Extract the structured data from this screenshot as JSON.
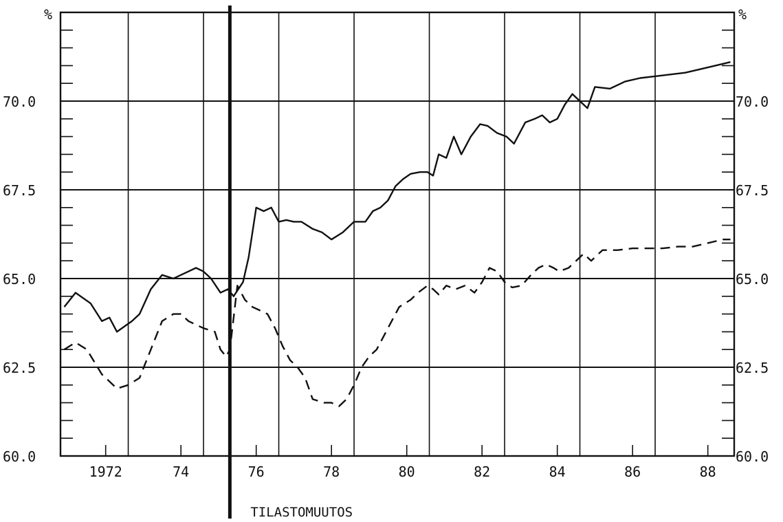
{
  "chart_data": {
    "type": "line",
    "unit_left": "%",
    "unit_right": "%",
    "ylim": [
      60.0,
      72.5
    ],
    "y_major_ticks": [
      60.0,
      62.5,
      65.0,
      67.5,
      70.0
    ],
    "y_tick_labels": [
      "60.0",
      "62.5",
      "65.0",
      "67.5",
      "70.0"
    ],
    "y_minor_step": 0.5,
    "xlim": [
      1970.8,
      1988.7
    ],
    "x_ticks": [
      1972,
      1974,
      1976,
      1978,
      1980,
      1982,
      1984,
      1986,
      1988
    ],
    "x_tick_labels": [
      "1972",
      "74",
      "76",
      "78",
      "80",
      "82",
      "84",
      "86",
      "88"
    ],
    "vertical_gridlines": [
      1970.8,
      1972.6,
      1974.6,
      1975.3,
      1976.6,
      1978.6,
      1980.6,
      1982.6,
      1984.6,
      1986.6,
      1988.7
    ],
    "grid": true,
    "legend": "none",
    "break_line": {
      "x": 1975.3,
      "label": "TILASTOMUUTOS"
    },
    "series": [
      {
        "style": "solid",
        "x": [
          1970.9,
          1971.2,
          1971.6,
          1971.9,
          1972.1,
          1972.3,
          1972.7,
          1972.9,
          1973.2,
          1973.5,
          1973.8,
          1974.0,
          1974.2,
          1974.4,
          1974.6,
          1974.8,
          1975.05,
          1975.25,
          1975.4,
          1975.65,
          1975.8,
          1976.0,
          1976.2,
          1976.4,
          1976.6,
          1976.8,
          1977.0,
          1977.2,
          1977.5,
          1977.75,
          1978.0,
          1978.3,
          1978.6,
          1978.9,
          1979.1,
          1979.3,
          1979.5,
          1979.7,
          1979.9,
          1980.1,
          1980.35,
          1980.55,
          1980.7,
          1980.85,
          1981.05,
          1981.25,
          1981.45,
          1981.7,
          1981.95,
          1982.15,
          1982.4,
          1982.65,
          1982.85,
          1983.15,
          1983.4,
          1983.6,
          1983.8,
          1984.0,
          1984.2,
          1984.4,
          1984.6,
          1984.8,
          1985.0,
          1985.4,
          1985.8,
          1986.2,
          1986.6,
          1987.0,
          1987.4,
          1987.8,
          1988.2,
          1988.6
        ],
        "values": [
          64.2,
          64.6,
          64.3,
          63.8,
          63.9,
          63.5,
          63.8,
          64.0,
          64.7,
          65.1,
          65.0,
          65.1,
          65.2,
          65.3,
          65.2,
          65.0,
          64.6,
          64.7,
          64.5,
          64.9,
          65.6,
          67.0,
          66.9,
          67.0,
          66.6,
          66.65,
          66.6,
          66.6,
          66.4,
          66.3,
          66.1,
          66.3,
          66.6,
          66.6,
          66.9,
          67.0,
          67.2,
          67.6,
          67.8,
          67.95,
          68.0,
          68.0,
          67.9,
          68.5,
          68.4,
          69.0,
          68.5,
          69.0,
          69.35,
          69.3,
          69.1,
          69.0,
          68.8,
          69.4,
          69.5,
          69.6,
          69.4,
          69.5,
          69.9,
          70.2,
          70.0,
          69.8,
          70.4,
          70.35,
          70.55,
          70.65,
          70.7,
          70.75,
          70.8,
          70.9,
          71.0,
          71.1
        ]
      },
      {
        "style": "dashed",
        "x": [
          1970.9,
          1971.2,
          1971.5,
          1971.9,
          1972.1,
          1972.3,
          1972.6,
          1972.9,
          1973.2,
          1973.5,
          1973.8,
          1974.0,
          1974.2,
          1974.4,
          1974.6,
          1974.9,
          1975.05,
          1975.2,
          1975.3,
          1975.5,
          1975.7,
          1975.9,
          1976.1,
          1976.3,
          1976.5,
          1976.7,
          1976.9,
          1977.1,
          1977.3,
          1977.5,
          1977.8,
          1978.0,
          1978.2,
          1978.4,
          1978.6,
          1978.8,
          1979.0,
          1979.2,
          1979.5,
          1979.8,
          1980.1,
          1980.3,
          1980.55,
          1980.7,
          1980.85,
          1981.05,
          1981.3,
          1981.55,
          1981.8,
          1982.0,
          1982.2,
          1982.4,
          1982.6,
          1982.8,
          1983.05,
          1983.3,
          1983.5,
          1983.7,
          1983.9,
          1984.05,
          1984.3,
          1984.5,
          1984.7,
          1984.9,
          1985.2,
          1985.6,
          1986.0,
          1986.4,
          1986.8,
          1987.2,
          1987.6,
          1988.0,
          1988.4,
          1988.6
        ],
        "values": [
          63.0,
          63.2,
          63.0,
          62.3,
          62.1,
          61.9,
          62.0,
          62.2,
          63.0,
          63.8,
          64.0,
          64.0,
          63.8,
          63.7,
          63.6,
          63.5,
          63.0,
          62.8,
          63.0,
          64.8,
          64.4,
          64.2,
          64.1,
          64.0,
          63.6,
          63.1,
          62.7,
          62.5,
          62.2,
          61.6,
          61.5,
          61.5,
          61.4,
          61.6,
          62.0,
          62.5,
          62.8,
          63.0,
          63.6,
          64.2,
          64.4,
          64.6,
          64.8,
          64.7,
          64.55,
          64.8,
          64.7,
          64.8,
          64.6,
          64.9,
          65.3,
          65.2,
          64.9,
          64.75,
          64.8,
          65.1,
          65.3,
          65.4,
          65.3,
          65.2,
          65.3,
          65.5,
          65.7,
          65.5,
          65.8,
          65.8,
          65.85,
          65.85,
          65.85,
          65.9,
          65.9,
          66.0,
          66.1,
          66.1
        ]
      }
    ]
  }
}
